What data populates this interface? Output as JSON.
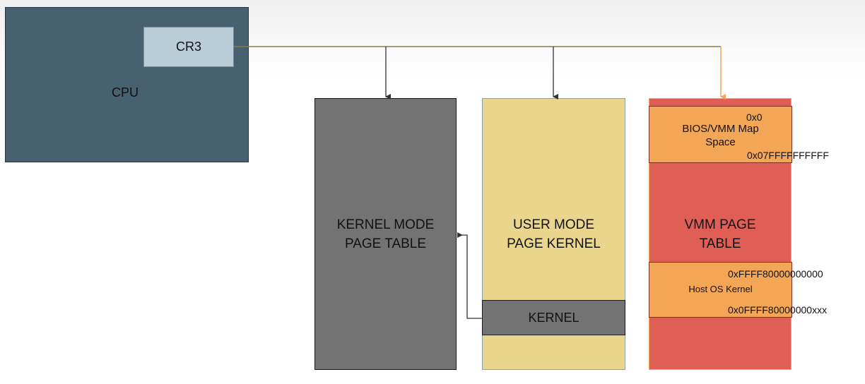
{
  "cpu": {
    "label": "CPU",
    "register": "CR3"
  },
  "tables": {
    "kernel_mode": "KERNEL MODE\nPAGE TABLE",
    "user_mode": "USER MODE\nPAGE KERNEL",
    "user_mode_kernel_region": "KERNEL",
    "vmm": "VMM PAGE\nTABLE"
  },
  "vmm_regions": {
    "bios": {
      "label": "BIOS/VMM Map\nSpace",
      "start": "0x0",
      "end": "0x07FFFFFFFFFF"
    },
    "host": {
      "label": "Host OS Kernel",
      "start": "0xFFFF80000000000",
      "end": "0x0FFFF80000000xxx"
    }
  },
  "colors": {
    "cpu": "#476170",
    "cr3": "#b9cdd8",
    "kernel_table": "#737373",
    "user_table": "#ead58c",
    "vmm_table": "#df5f56",
    "vmm_region": "#f2a656",
    "connector": "#8a7a4a",
    "vmm_arrow": "#f2a35c"
  }
}
